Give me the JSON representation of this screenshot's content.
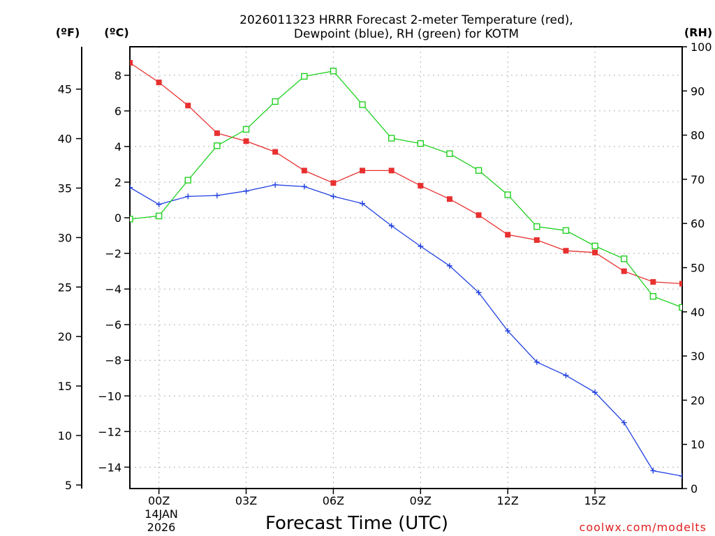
{
  "chart_data": {
    "type": "line",
    "title_line1": "2026011323 HRRR Forecast 2-meter Temperature (red),",
    "title_line2": "Dewpoint (blue), RH (green) for KOTM",
    "xlabel": "Forecast Time (UTC)",
    "credit": "coolwx.com/modelts",
    "units": {
      "fahrenheit": "(ºF)",
      "celsius": "(ºC)",
      "rh": "(RH)"
    },
    "date_label": {
      "day": "14JAN",
      "year": "2026"
    },
    "x_hours": [
      -1,
      0,
      1,
      2,
      3,
      4,
      5,
      6,
      7,
      8,
      9,
      10,
      11,
      12,
      13,
      14,
      15,
      16,
      17,
      18
    ],
    "x_range": [
      -1,
      18
    ],
    "x_ticks": [
      {
        "hour": 0,
        "label": "00Z"
      },
      {
        "hour": 3,
        "label": "03Z"
      },
      {
        "hour": 6,
        "label": "06Z"
      },
      {
        "hour": 9,
        "label": "09Z"
      },
      {
        "hour": 12,
        "label": "12Z"
      },
      {
        "hour": 15,
        "label": "15Z"
      }
    ],
    "y_celsius": {
      "range": [
        -15.2,
        9.6
      ],
      "ticks": [
        8,
        6,
        4,
        2,
        0,
        -2,
        -4,
        -6,
        -8,
        -10,
        -12,
        -14
      ],
      "labels": [
        "8",
        "6",
        "4",
        "2",
        "0",
        "−2",
        "−4",
        "−6",
        "−8",
        "−10",
        "−12",
        "−14"
      ]
    },
    "y_fahrenheit": {
      "ticks": [
        45,
        40,
        35,
        30,
        25,
        20,
        15,
        10,
        5
      ],
      "labels": [
        "45",
        "40",
        "35",
        "30",
        "25",
        "20",
        "15",
        "10",
        "5"
      ]
    },
    "y_rh": {
      "range": [
        0,
        100
      ],
      "ticks": [
        100,
        90,
        80,
        70,
        60,
        50,
        40,
        30,
        20,
        10,
        0
      ],
      "labels": [
        "100",
        "90",
        "80",
        "70",
        "60",
        "50",
        "40",
        "30",
        "20",
        "10",
        "0"
      ]
    },
    "series": [
      {
        "name": "Temperature",
        "axis": "celsius",
        "color": "#e83030",
        "marker": "filled-square",
        "values": [
          8.7,
          7.6,
          6.3,
          4.75,
          4.3,
          3.7,
          2.65,
          1.95,
          2.65,
          2.65,
          1.8,
          1.05,
          0.15,
          -0.95,
          -1.25,
          -1.85,
          -1.95,
          -3.0,
          -3.6,
          -3.7
        ]
      },
      {
        "name": "Dewpoint",
        "axis": "celsius",
        "color": "#2040e0",
        "marker": "plus",
        "values": [
          1.7,
          0.75,
          1.2,
          1.25,
          1.5,
          1.85,
          1.75,
          1.2,
          0.8,
          -0.45,
          -1.6,
          -2.7,
          -4.2,
          -6.35,
          -8.1,
          -8.85,
          -9.8,
          -11.5,
          -14.2,
          -14.5
        ]
      },
      {
        "name": "RH",
        "axis": "rh",
        "color": "#20d020",
        "marker": "open-square",
        "values": [
          61,
          61.7,
          69.8,
          77.6,
          81.3,
          87.6,
          93.3,
          94.5,
          86.9,
          79.3,
          78.1,
          75.8,
          72,
          66.5,
          59.3,
          58.4,
          54.9,
          52,
          43.5,
          41
        ]
      }
    ]
  }
}
